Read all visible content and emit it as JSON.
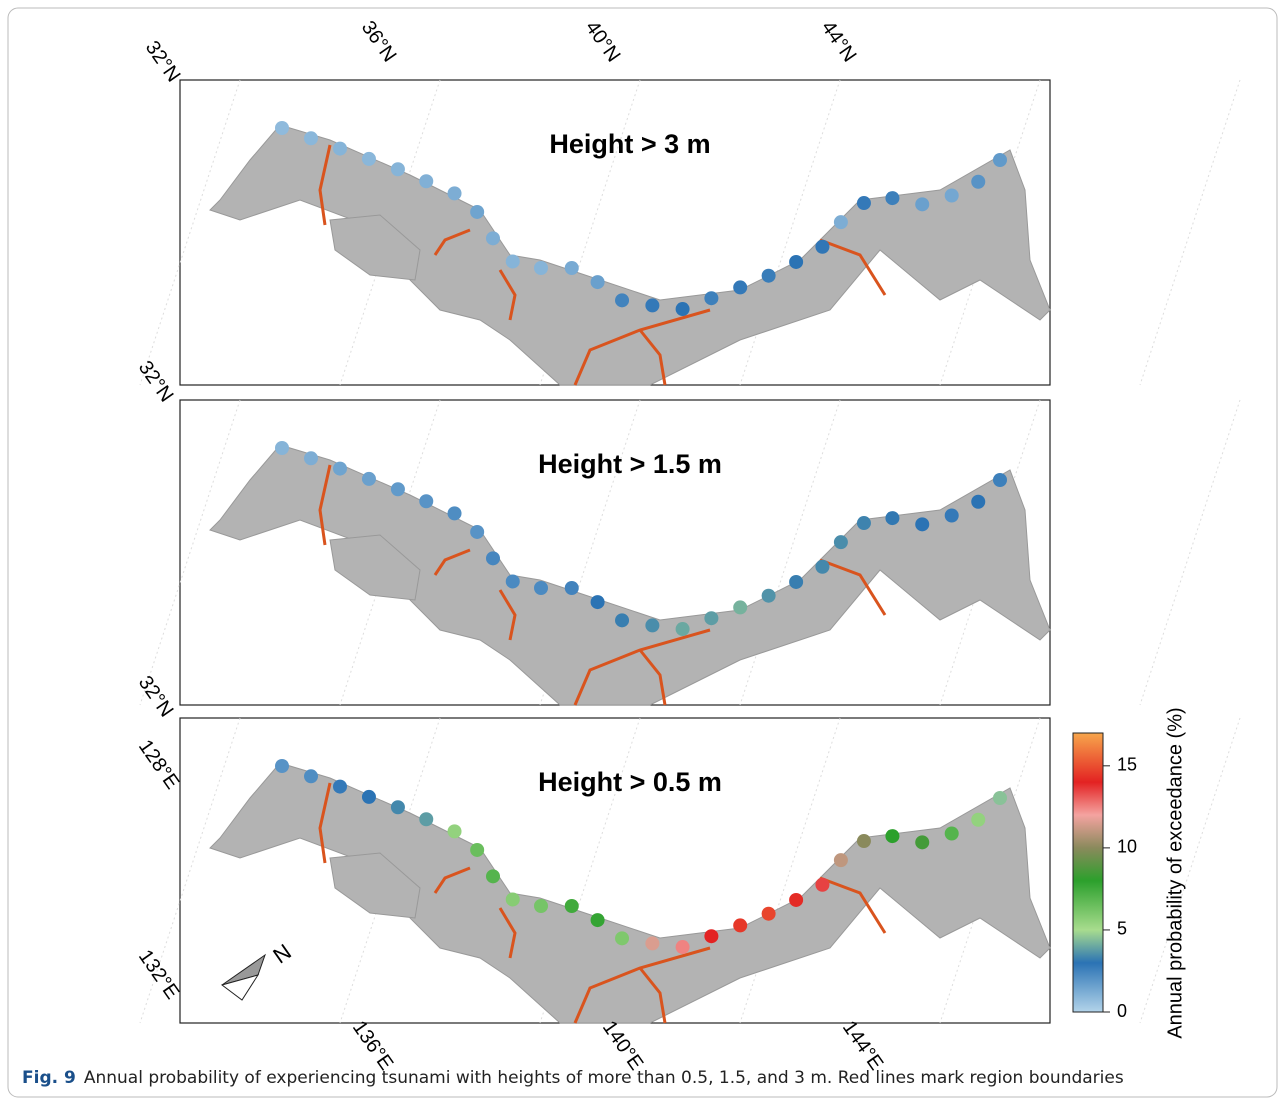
{
  "figure": {
    "panels": [
      {
        "title": "Height > 3 m",
        "values": [
          0.8,
          0.9,
          1.0,
          0.9,
          1.0,
          1.1,
          1.2,
          1.5,
          1.2,
          1.0,
          1.0,
          1.3,
          1.6,
          2.5,
          2.8,
          3.0,
          2.6,
          2.8,
          2.7,
          3.0,
          2.9,
          1.2,
          2.8,
          2.6,
          1.6,
          1.4,
          2.0,
          1.8
        ]
      },
      {
        "title": "Height > 1.5 m",
        "values": [
          1.0,
          1.2,
          1.5,
          1.6,
          1.8,
          2.0,
          2.2,
          2.0,
          2.4,
          2.3,
          2.3,
          2.5,
          3.0,
          3.2,
          3.5,
          4.0,
          3.8,
          4.2,
          3.6,
          3.2,
          3.4,
          3.5,
          3.3,
          3.1,
          3.0,
          2.8,
          3.0,
          2.6
        ]
      },
      {
        "title": "Height > 0.5 m",
        "values": [
          2.0,
          2.2,
          2.8,
          3.0,
          3.4,
          3.8,
          5.5,
          6.5,
          7.0,
          5.8,
          6.2,
          7.5,
          7.8,
          6.0,
          11.5,
          12.5,
          14.0,
          14.5,
          14.8,
          14.2,
          13.5,
          11.0,
          10.0,
          8.0,
          8.5,
          7.0,
          5.5,
          4.5
        ]
      }
    ],
    "lat_labels": [
      "32°N",
      "36°N",
      "40°N",
      "44°N",
      "32°N",
      "32°N"
    ],
    "lon_labels": [
      "128°E",
      "132°E",
      "136°E",
      "140°E",
      "144°E"
    ],
    "north": "N",
    "colorbar": {
      "label": "Annual probability of exceedance (%)",
      "lim": [
        0,
        17
      ],
      "ticks": [
        0,
        5,
        10,
        15
      ]
    },
    "caption": {
      "label": "Fig. 9",
      "text": "Annual probability of experiencing tsunami with heights of more than 0.5, 1.5, and 3 m. Red lines mark region boundaries"
    }
  }
}
